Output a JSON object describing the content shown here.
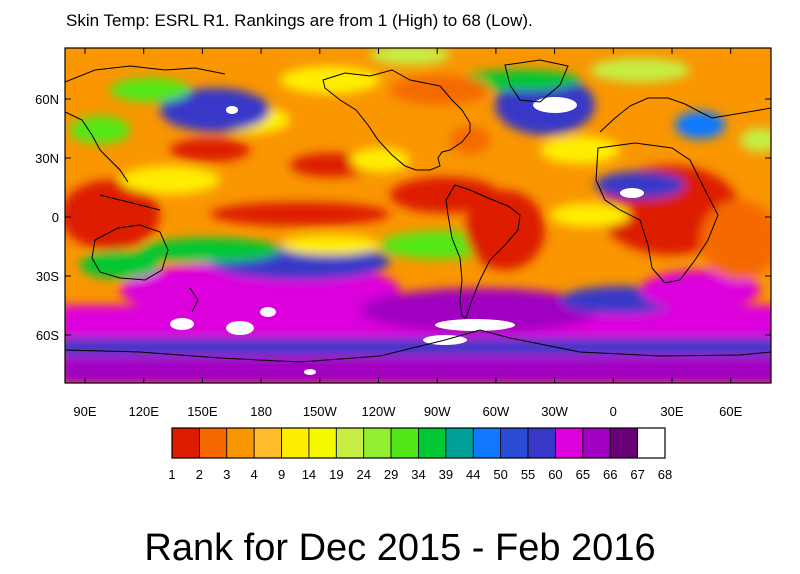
{
  "title": "Skin Temp: ESRL R1. Rankings are from 1 (High) to 68 (Low).",
  "bottom_title": "Rank for Dec 2015 - Feb 2016",
  "map": {
    "lat_ticks": [
      "60N",
      "30N",
      "0",
      "30S",
      "60S"
    ],
    "lon_ticks": [
      "90E",
      "120E",
      "150E",
      "180",
      "150W",
      "120W",
      "90W",
      "60W",
      "30W",
      "0",
      "30E",
      "60E"
    ]
  },
  "colorbar": {
    "colors": [
      "#dd1c00",
      "#f56a00",
      "#f99600",
      "#ffbc2a",
      "#ffee00",
      "#f4f800",
      "#c6ee44",
      "#92ee30",
      "#52e818",
      "#00c832",
      "#00a096",
      "#1078ff",
      "#2a4cd6",
      "#3838c8",
      "#dc00dc",
      "#a000c0",
      "#6a0078",
      "#ffffff"
    ],
    "labels": [
      "1",
      "2",
      "3",
      "4",
      "9",
      "14",
      "19",
      "24",
      "29",
      "34",
      "39",
      "44",
      "50",
      "55",
      "60",
      "65",
      "66",
      "67",
      "68"
    ]
  }
}
